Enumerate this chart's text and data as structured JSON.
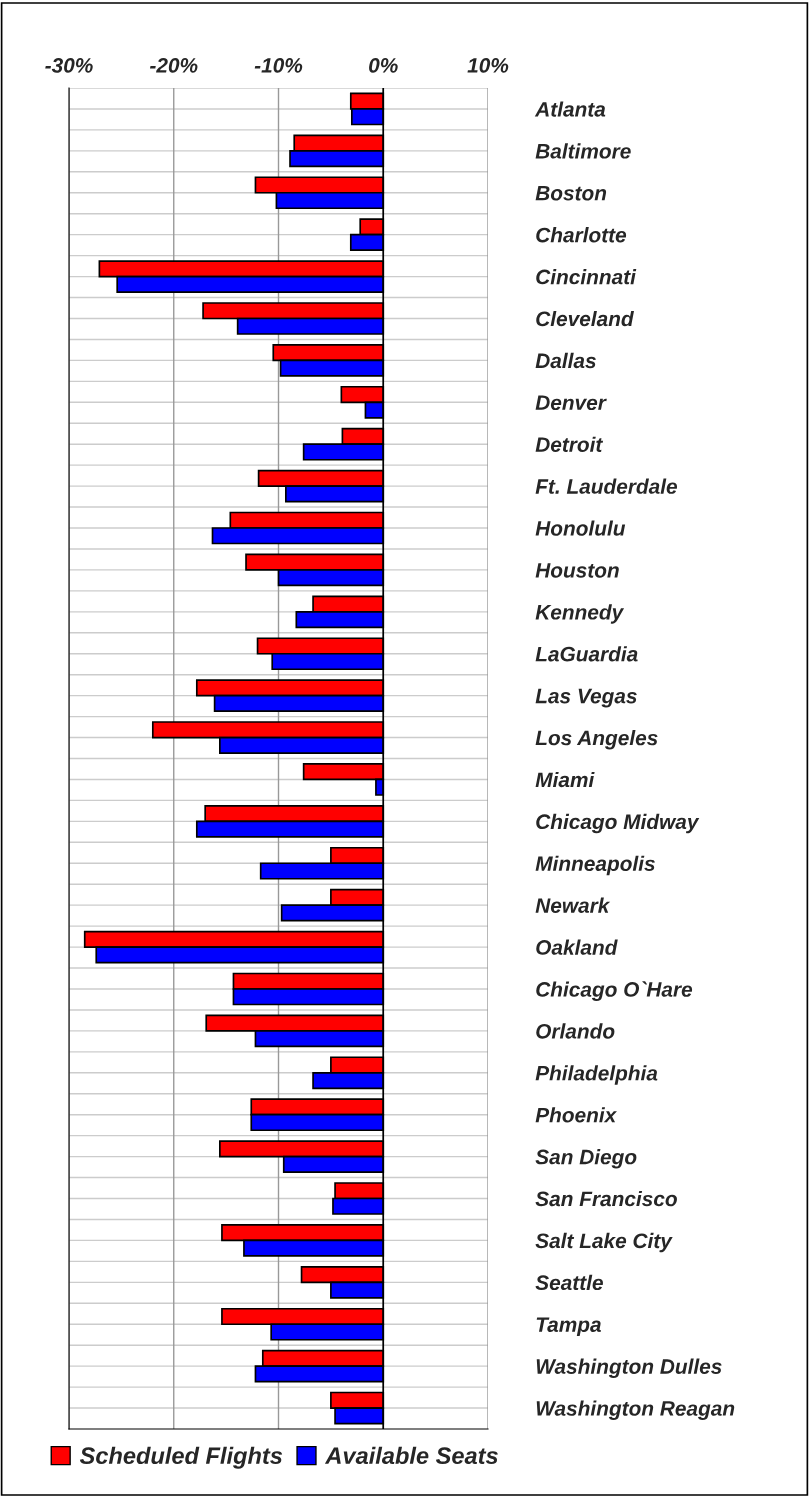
{
  "chart_data": {
    "type": "bar",
    "orientation": "horizontal",
    "categories": [
      "Atlanta",
      "Baltimore",
      "Boston",
      "Charlotte",
      "Cincinnati",
      "Cleveland",
      "Dallas",
      "Denver",
      "Detroit",
      "Ft. Lauderdale",
      "Honolulu",
      "Houston",
      "Kennedy",
      "LaGuardia",
      "Las Vegas",
      "Los Angeles",
      "Miami",
      "Chicago Midway",
      "Minneapolis",
      "Newark",
      "Oakland",
      "Chicago O`Hare",
      "Orlando",
      "Philadelphia",
      "Phoenix",
      "San Diego",
      "San Francisco",
      "Salt Lake City",
      "Seattle",
      "Tampa",
      "Washington Dulles",
      "Washington Reagan"
    ],
    "series": [
      {
        "name": "Scheduled Flights",
        "color": "#ff0000",
        "values": [
          -3.1,
          -8.5,
          -12.2,
          -2.2,
          -27.1,
          -17.2,
          -10.5,
          -4.0,
          -3.9,
          -11.9,
          -14.6,
          -13.1,
          -6.7,
          -12.0,
          -17.8,
          -22.0,
          -7.6,
          -17.0,
          -5.0,
          -5.0,
          -28.5,
          -14.3,
          -16.9,
          -5.0,
          -12.6,
          -15.6,
          -4.6,
          -15.4,
          -7.8,
          -15.4,
          -11.5,
          -5.0
        ]
      },
      {
        "name": "Available Seats",
        "color": "#0000ff",
        "values": [
          -3.0,
          -8.9,
          -10.2,
          -3.1,
          -25.4,
          -13.9,
          -9.8,
          -1.7,
          -7.6,
          -9.3,
          -16.3,
          -10.0,
          -8.3,
          -10.6,
          -16.1,
          -15.6,
          -0.7,
          -17.8,
          -11.7,
          -9.7,
          -27.4,
          -14.3,
          -12.2,
          -6.7,
          -12.6,
          -9.5,
          -4.8,
          -13.3,
          -5.0,
          -10.7,
          -12.2,
          -4.6
        ]
      }
    ],
    "xlim": [
      -30,
      10
    ],
    "xticks": [
      {
        "value": -30,
        "label": "-30%"
      },
      {
        "value": -20,
        "label": "-20%"
      },
      {
        "value": -10,
        "label": "-10%"
      },
      {
        "value": 0,
        "label": "0%"
      },
      {
        "value": 10,
        "label": "10%"
      }
    ],
    "grid": true,
    "legend": "bottom left"
  }
}
